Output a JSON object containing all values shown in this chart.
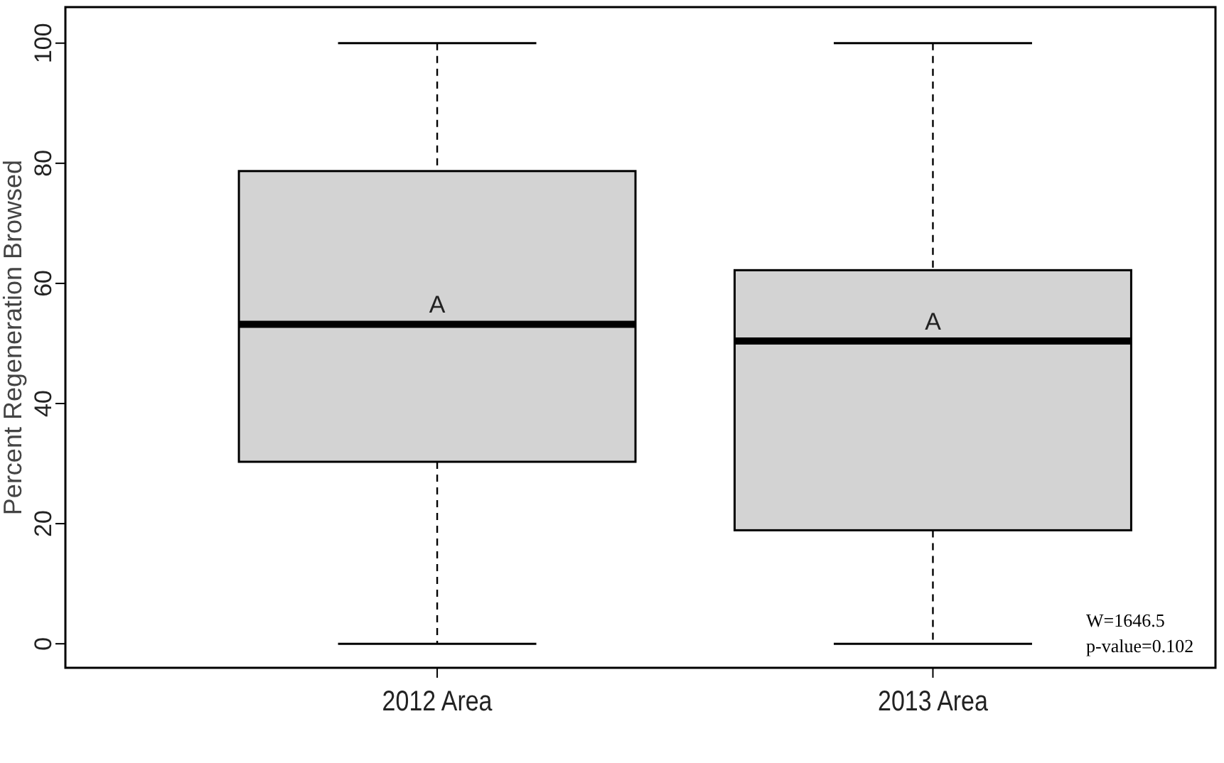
{
  "chart_data": {
    "type": "box",
    "ylabel": "Percent Regeneration Browsed",
    "categories": [
      "2012 Area",
      "2013 Area"
    ],
    "boxes": [
      {
        "low": 0,
        "q1": 30.3,
        "median": 53.2,
        "q3": 78.7,
        "high": 100
      },
      {
        "low": 0,
        "q1": 18.9,
        "median": 50.4,
        "q3": 62.2,
        "high": 100
      }
    ],
    "color": "#d3d3d3",
    "ylim": [
      -4,
      106
    ],
    "yticks": [
      0,
      20,
      40,
      60,
      80,
      100
    ],
    "grid": false,
    "annotations": [
      "A",
      "A",
      "W=1646.5",
      "p-value=0.102"
    ]
  }
}
